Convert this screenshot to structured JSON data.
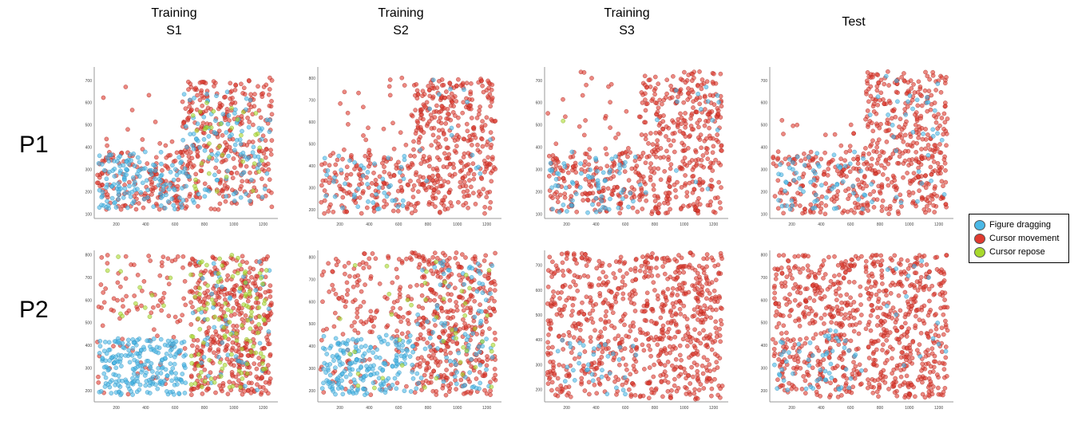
{
  "columns": [
    {
      "line1": "Training",
      "line2": "S1"
    },
    {
      "line1": "Training",
      "line2": "S2"
    },
    {
      "line1": "Training",
      "line2": "S3"
    },
    {
      "line1": "Test",
      "line2": ""
    }
  ],
  "rows": [
    {
      "label": "P1"
    },
    {
      "label": "P2"
    }
  ],
  "legend": [
    {
      "label": "Figure dragging",
      "color": "#4ab8e6"
    },
    {
      "label": "Cursor movement",
      "color": "#e03a2f"
    },
    {
      "label": "Cursor repose",
      "color": "#a8d92c"
    }
  ],
  "chart_data": [
    {
      "type": "scatter",
      "row": "P1",
      "column": "Training S1",
      "x_ticks": [
        "200",
        "400",
        "600",
        "800",
        "1000",
        "1200"
      ],
      "y_ticks": [
        "100",
        "200",
        "300",
        "400",
        "500",
        "600",
        "700"
      ],
      "xlim": [
        50,
        1300
      ],
      "ylim": [
        80,
        760
      ],
      "series": [
        {
          "name": "Figure dragging",
          "clusters": [
            {
              "x": [
                80,
                650
              ],
              "y": [
                120,
                380
              ],
              "n": 140
            },
            {
              "x": [
                650,
                1250
              ],
              "y": [
                150,
                650
              ],
              "n": 110
            }
          ]
        },
        {
          "name": "Cursor movement",
          "clusters": [
            {
              "x": [
                70,
                650
              ],
              "y": [
                120,
                380
              ],
              "n": 150
            },
            {
              "x": [
                650,
                1260
              ],
              "y": [
                120,
                700
              ],
              "n": 300
            },
            {
              "x": [
                70,
                1260
              ],
              "y": [
                380,
                720
              ],
              "n": 30
            }
          ]
        },
        {
          "name": "Cursor repose",
          "clusters": [
            {
              "x": [
                700,
                1200
              ],
              "y": [
                200,
                600
              ],
              "n": 35
            }
          ]
        }
      ]
    },
    {
      "type": "scatter",
      "row": "P1",
      "column": "Training S2",
      "x_ticks": [
        "200",
        "400",
        "600",
        "800",
        "1000",
        "1200"
      ],
      "y_ticks": [
        "200",
        "300",
        "400",
        "500",
        "600",
        "700",
        "800"
      ],
      "xlim": [
        50,
        1300
      ],
      "ylim": [
        160,
        850
      ],
      "series": [
        {
          "name": "Figure dragging",
          "clusters": [
            {
              "x": [
                80,
                700
              ],
              "y": [
                200,
                450
              ],
              "n": 45
            },
            {
              "x": [
                700,
                1250
              ],
              "y": [
                250,
                800
              ],
              "n": 15
            }
          ]
        },
        {
          "name": "Cursor movement",
          "clusters": [
            {
              "x": [
                70,
                700
              ],
              "y": [
                180,
                450
              ],
              "n": 150
            },
            {
              "x": [
                700,
                1260
              ],
              "y": [
                180,
                800
              ],
              "n": 380
            },
            {
              "x": [
                70,
                700
              ],
              "y": [
                450,
                820
              ],
              "n": 25
            }
          ]
        },
        {
          "name": "Cursor repose",
          "clusters": []
        }
      ]
    },
    {
      "type": "scatter",
      "row": "P1",
      "column": "Training S3",
      "x_ticks": [
        "200",
        "400",
        "600",
        "800",
        "1000",
        "1200"
      ],
      "y_ticks": [
        "100",
        "200",
        "300",
        "400",
        "500",
        "600",
        "700"
      ],
      "xlim": [
        50,
        1300
      ],
      "ylim": [
        80,
        760
      ],
      "series": [
        {
          "name": "Figure dragging",
          "clusters": [
            {
              "x": [
                80,
                700
              ],
              "y": [
                100,
                380
              ],
              "n": 70
            },
            {
              "x": [
                700,
                1250
              ],
              "y": [
                150,
                720
              ],
              "n": 15
            }
          ]
        },
        {
          "name": "Cursor movement",
          "clusters": [
            {
              "x": [
                70,
                700
              ],
              "y": [
                100,
                380
              ],
              "n": 180
            },
            {
              "x": [
                700,
                1260
              ],
              "y": [
                100,
                740
              ],
              "n": 380
            },
            {
              "x": [
                70,
                700
              ],
              "y": [
                380,
                740
              ],
              "n": 25
            }
          ]
        },
        {
          "name": "Cursor repose",
          "clusters": [
            {
              "x": [
                150,
                200
              ],
              "y": [
                510,
                530
              ],
              "n": 1
            }
          ]
        }
      ]
    },
    {
      "type": "scatter",
      "row": "P1",
      "column": "Test",
      "x_ticks": [
        "200",
        "400",
        "600",
        "800",
        "1000",
        "1200"
      ],
      "y_ticks": [
        "100",
        "200",
        "300",
        "400",
        "500",
        "600",
        "700"
      ],
      "xlim": [
        50,
        1300
      ],
      "ylim": [
        80,
        760
      ],
      "series": [
        {
          "name": "Figure dragging",
          "clusters": [
            {
              "x": [
                80,
                700
              ],
              "y": [
                120,
                380
              ],
              "n": 60
            },
            {
              "x": [
                700,
                1250
              ],
              "y": [
                150,
                720
              ],
              "n": 35
            }
          ]
        },
        {
          "name": "Cursor movement",
          "clusters": [
            {
              "x": [
                70,
                700
              ],
              "y": [
                100,
                380
              ],
              "n": 170
            },
            {
              "x": [
                700,
                1260
              ],
              "y": [
                100,
                740
              ],
              "n": 380
            },
            {
              "x": [
                70,
                700
              ],
              "y": [
                380,
                600
              ],
              "n": 12
            }
          ]
        },
        {
          "name": "Cursor repose",
          "clusters": []
        }
      ]
    },
    {
      "type": "scatter",
      "row": "P2",
      "column": "Training S1",
      "x_ticks": [
        "200",
        "400",
        "600",
        "800",
        "1000",
        "1200"
      ],
      "y_ticks": [
        "200",
        "300",
        "400",
        "500",
        "600",
        "700",
        "800"
      ],
      "xlim": [
        50,
        1300
      ],
      "ylim": [
        150,
        820
      ],
      "series": [
        {
          "name": "Figure dragging",
          "clusters": [
            {
              "x": [
                80,
                680
              ],
              "y": [
                180,
                430
              ],
              "n": 230
            },
            {
              "x": [
                700,
                1250
              ],
              "y": [
                200,
                800
              ],
              "n": 50
            }
          ]
        },
        {
          "name": "Cursor movement",
          "clusters": [
            {
              "x": [
                70,
                680
              ],
              "y": [
                420,
                800
              ],
              "n": 70
            },
            {
              "x": [
                700,
                1260
              ],
              "y": [
                180,
                800
              ],
              "n": 420
            },
            {
              "x": [
                70,
                680
              ],
              "y": [
                180,
                430
              ],
              "n": 25
            }
          ]
        },
        {
          "name": "Cursor repose",
          "clusters": [
            {
              "x": [
                700,
                1250
              ],
              "y": [
                200,
                800
              ],
              "n": 110
            },
            {
              "x": [
                80,
                680
              ],
              "y": [
                450,
                800
              ],
              "n": 12
            }
          ]
        }
      ]
    },
    {
      "type": "scatter",
      "row": "P2",
      "column": "Training S2",
      "x_ticks": [
        "200",
        "400",
        "600",
        "800",
        "1000",
        "1200"
      ],
      "y_ticks": [
        "200",
        "300",
        "400",
        "500",
        "600",
        "700",
        "800"
      ],
      "xlim": [
        50,
        1300
      ],
      "ylim": [
        150,
        830
      ],
      "series": [
        {
          "name": "Figure dragging",
          "clusters": [
            {
              "x": [
                80,
                700
              ],
              "y": [
                180,
                450
              ],
              "n": 200
            },
            {
              "x": [
                700,
                1250
              ],
              "y": [
                200,
                800
              ],
              "n": 90
            }
          ]
        },
        {
          "name": "Cursor movement",
          "clusters": [
            {
              "x": [
                70,
                700
              ],
              "y": [
                450,
                820
              ],
              "n": 120
            },
            {
              "x": [
                700,
                1260
              ],
              "y": [
                180,
                820
              ],
              "n": 380
            },
            {
              "x": [
                70,
                700
              ],
              "y": [
                180,
                450
              ],
              "n": 40
            }
          ]
        },
        {
          "name": "Cursor repose",
          "clusters": [
            {
              "x": [
                200,
                1250
              ],
              "y": [
                200,
                800
              ],
              "n": 45
            }
          ]
        }
      ]
    },
    {
      "type": "scatter",
      "row": "P2",
      "column": "Training S3",
      "x_ticks": [
        "200",
        "400",
        "600",
        "800",
        "1000",
        "1200"
      ],
      "y_ticks": [
        "200",
        "300",
        "400",
        "500",
        "600",
        "700"
      ],
      "xlim": [
        50,
        1300
      ],
      "ylim": [
        150,
        760
      ],
      "series": [
        {
          "name": "Figure dragging",
          "clusters": [
            {
              "x": [
                80,
                680
              ],
              "y": [
                180,
                400
              ],
              "n": 35
            }
          ]
        },
        {
          "name": "Cursor movement",
          "clusters": [
            {
              "x": [
                70,
                680
              ],
              "y": [
                430,
                750
              ],
              "n": 200
            },
            {
              "x": [
                700,
                1260
              ],
              "y": [
                160,
                750
              ],
              "n": 420
            },
            {
              "x": [
                70,
                680
              ],
              "y": [
                170,
                420
              ],
              "n": 160
            }
          ]
        },
        {
          "name": "Cursor repose",
          "clusters": []
        }
      ]
    },
    {
      "type": "scatter",
      "row": "P2",
      "column": "Test",
      "x_ticks": [
        "200",
        "400",
        "600",
        "800",
        "1000",
        "1200"
      ],
      "y_ticks": [
        "200",
        "300",
        "400",
        "500",
        "600",
        "700",
        "800"
      ],
      "xlim": [
        50,
        1300
      ],
      "ylim": [
        150,
        820
      ],
      "series": [
        {
          "name": "Figure dragging",
          "clusters": [
            {
              "x": [
                80,
                680
              ],
              "y": [
                180,
                470
              ],
              "n": 55
            },
            {
              "x": [
                700,
                1250
              ],
              "y": [
                250,
                800
              ],
              "n": 15
            }
          ]
        },
        {
          "name": "Cursor movement",
          "clusters": [
            {
              "x": [
                70,
                680
              ],
              "y": [
                480,
                800
              ],
              "n": 220
            },
            {
              "x": [
                700,
                1260
              ],
              "y": [
                170,
                800
              ],
              "n": 420
            },
            {
              "x": [
                70,
                680
              ],
              "y": [
                170,
                470
              ],
              "n": 170
            }
          ]
        },
        {
          "name": "Cursor repose",
          "clusters": []
        }
      ]
    }
  ]
}
